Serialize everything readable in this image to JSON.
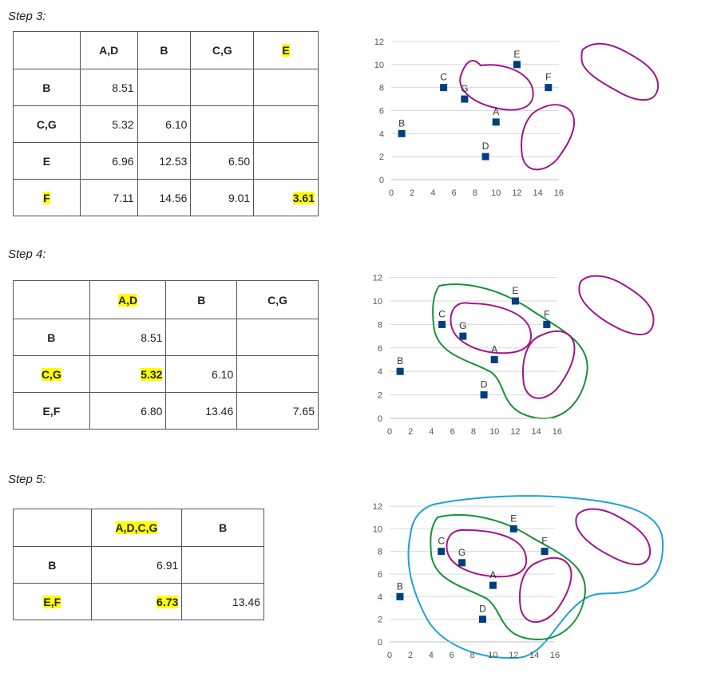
{
  "step3": {
    "title": "Step 3:",
    "cols": [
      "A,D",
      "B",
      "C,G",
      "E"
    ],
    "rows": [
      {
        "label": "B",
        "vals": [
          "8.51",
          "",
          "",
          ""
        ]
      },
      {
        "label": "C,G",
        "vals": [
          "5.32",
          "6.10",
          "",
          ""
        ]
      },
      {
        "label": "E",
        "vals": [
          "6.96",
          "12.53",
          "6.50",
          ""
        ]
      },
      {
        "label": "F",
        "vals": [
          "7.11",
          "14.56",
          "9.01",
          "3.61"
        ]
      }
    ]
  },
  "step4": {
    "title": "Step 4:",
    "cols": [
      "A,D",
      "B",
      "C,G"
    ],
    "rows": [
      {
        "label": "B",
        "vals": [
          "8.51",
          "",
          ""
        ]
      },
      {
        "label": "C,G",
        "vals": [
          "5.32",
          "6.10",
          ""
        ]
      },
      {
        "label": "E,F",
        "vals": [
          "6.80",
          "13.46",
          "7.65"
        ]
      }
    ]
  },
  "step5": {
    "title": "Step 5:",
    "cols": [
      "A,D,C,G",
      "B"
    ],
    "rows": [
      {
        "label": "B",
        "vals": [
          "6.91",
          ""
        ]
      },
      {
        "label": "E,F",
        "vals": [
          "6.73",
          "13.46"
        ]
      }
    ]
  },
  "chart_data": [
    {
      "type": "scatter",
      "points": [
        {
          "label": "A",
          "x": 10,
          "y": 5
        },
        {
          "label": "B",
          "x": 1,
          "y": 4
        },
        {
          "label": "C",
          "x": 5,
          "y": 8
        },
        {
          "label": "D",
          "x": 9,
          "y": 2
        },
        {
          "label": "E",
          "x": 12,
          "y": 10
        },
        {
          "label": "F",
          "x": 15,
          "y": 8
        },
        {
          "label": "G",
          "x": 7,
          "y": 7
        }
      ],
      "xlim": [
        0,
        16
      ],
      "ylim": [
        0,
        12
      ],
      "xticks": [
        "0",
        "2",
        "4",
        "6",
        "8",
        "10",
        "12",
        "14",
        "16"
      ],
      "yticks": [
        "0",
        "2",
        "4",
        "6",
        "8",
        "10",
        "12"
      ],
      "grid": true,
      "marker_color": "#003f7f",
      "clusters": [
        [
          "C",
          "G"
        ],
        [
          "A",
          "D"
        ],
        [
          "E",
          "F"
        ]
      ]
    },
    {
      "type": "scatter",
      "points": [
        {
          "label": "A",
          "x": 10,
          "y": 5
        },
        {
          "label": "B",
          "x": 1,
          "y": 4
        },
        {
          "label": "C",
          "x": 5,
          "y": 8
        },
        {
          "label": "D",
          "x": 9,
          "y": 2
        },
        {
          "label": "E",
          "x": 12,
          "y": 10
        },
        {
          "label": "F",
          "x": 15,
          "y": 8
        },
        {
          "label": "G",
          "x": 7,
          "y": 7
        }
      ],
      "xlim": [
        0,
        16
      ],
      "ylim": [
        0,
        12
      ],
      "xticks": [
        "0",
        "2",
        "4",
        "6",
        "8",
        "10",
        "12",
        "14",
        "16"
      ],
      "yticks": [
        "0",
        "2",
        "4",
        "6",
        "8",
        "10",
        "12"
      ],
      "grid": true,
      "marker_color": "#003f7f",
      "clusters": [
        [
          "C",
          "G"
        ],
        [
          "A",
          "D"
        ],
        [
          "E",
          "F"
        ],
        [
          "A",
          "D",
          "C",
          "G"
        ]
      ]
    },
    {
      "type": "scatter",
      "points": [
        {
          "label": "A",
          "x": 10,
          "y": 5
        },
        {
          "label": "B",
          "x": 1,
          "y": 4
        },
        {
          "label": "C",
          "x": 5,
          "y": 8
        },
        {
          "label": "D",
          "x": 9,
          "y": 2
        },
        {
          "label": "E",
          "x": 12,
          "y": 10
        },
        {
          "label": "F",
          "x": 15,
          "y": 8
        },
        {
          "label": "G",
          "x": 7,
          "y": 7
        }
      ],
      "xlim": [
        0,
        16
      ],
      "ylim": [
        0,
        12
      ],
      "xticks": [
        "0",
        "2",
        "4",
        "6",
        "8",
        "10",
        "12",
        "14",
        "16"
      ],
      "yticks": [
        "0",
        "2",
        "4",
        "6",
        "8",
        "10",
        "12"
      ],
      "grid": true,
      "marker_color": "#003f7f",
      "clusters": [
        [
          "C",
          "G"
        ],
        [
          "A",
          "D"
        ],
        [
          "E",
          "F"
        ],
        [
          "A",
          "D",
          "C",
          "G"
        ],
        [
          "A",
          "D",
          "C",
          "G",
          "E",
          "F"
        ]
      ]
    }
  ],
  "colors": {
    "highlight": "#ffff00",
    "cluster_pair": "#a0168a",
    "cluster_merge": "#17913a",
    "cluster_outer": "#1aa2d6"
  }
}
